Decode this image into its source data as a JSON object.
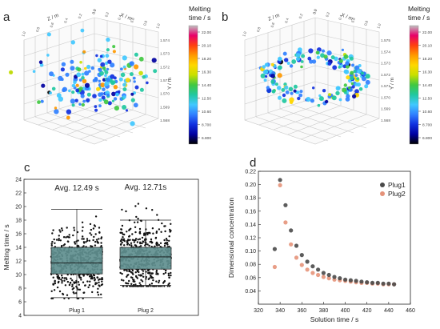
{
  "panels": {
    "a": {
      "letter": "a",
      "axes": {
        "x_label": "X / m",
        "y_label": "Y / m",
        "z_label": "Z / m",
        "x_ticks": [
          "0.0",
          "0.2",
          "0.4",
          "0.6",
          "0.8",
          "1.0"
        ],
        "y_ticks": [
          "1.568",
          "1.569",
          "1.570",
          "1.571",
          "1.572",
          "1.573",
          "1.574"
        ],
        "z_ticks": [
          "0.0",
          "0.2",
          "0.4",
          "0.6",
          "0.8",
          "1.0"
        ]
      },
      "colorbar": {
        "title_lines": [
          "Melting",
          "time / s"
        ],
        "ticks": [
          "22.00",
          "20.10",
          "18.20",
          "16.30",
          "14.40",
          "12.50",
          "10.60",
          "8.700",
          "6.800"
        ],
        "colors": [
          "#c0c0c0",
          "#e8006a",
          "#ff4010",
          "#ff9900",
          "#ffd700",
          "#c8e000",
          "#40c840",
          "#20c8a0",
          "#40c8ff",
          "#3080ff",
          "#1030e0",
          "#0000a0",
          "#000000"
        ]
      }
    },
    "b": {
      "letter": "b",
      "axes": {
        "x_label": "X / m",
        "y_label": "Y / m",
        "z_label": "Z / m",
        "x_ticks": [
          "0.0",
          "0.2",
          "0.4",
          "0.6",
          "0.8",
          "1.0"
        ],
        "y_ticks": [
          "1.568",
          "1.569",
          "1.570",
          "1.571",
          "1.572",
          "1.573",
          "1.574",
          "1.575"
        ],
        "z_ticks": [
          "0.0",
          "0.2",
          "0.4",
          "0.6",
          "0.8",
          "1.0"
        ]
      },
      "colorbar": {
        "title_lines": [
          "Melting",
          "time / s"
        ],
        "ticks": [
          "22.00",
          "20.10",
          "18.20",
          "16.30",
          "14.40",
          "12.50",
          "10.60",
          "8.700",
          "6.800"
        ],
        "colors": [
          "#c0c0c0",
          "#e8006a",
          "#ff4010",
          "#ff9900",
          "#ffd700",
          "#c8e000",
          "#40c840",
          "#20c8a0",
          "#40c8ff",
          "#3080ff",
          "#1030e0",
          "#0000a0",
          "#000000"
        ]
      }
    },
    "c": {
      "letter": "c",
      "annotations": [
        "Avg. 12.49 s",
        "Avg. 12.71s"
      ]
    },
    "d": {
      "letter": "d"
    }
  },
  "chart_data": [
    {
      "type": "scatter",
      "panel": "a",
      "title": "",
      "xlabel": "X / m",
      "ylabel": "Y / m",
      "zlabel": "Z / m",
      "ylim": [
        1.568,
        1.574
      ],
      "color_by": "Melting time / s",
      "color_range": [
        6.8,
        22.0
      ]
    },
    {
      "type": "scatter",
      "panel": "b",
      "title": "",
      "xlabel": "X / m",
      "ylabel": "Y / m",
      "zlabel": "Z / m",
      "ylim": [
        1.568,
        1.575
      ],
      "color_by": "Melting time / s",
      "color_range": [
        6.8,
        22.0
      ]
    },
    {
      "type": "box",
      "panel": "c",
      "categories": [
        "Plug 1",
        "Plug 2"
      ],
      "ylabel": "Melting time / s",
      "ylim": [
        4,
        24
      ],
      "yticks": [
        4,
        6,
        8,
        10,
        12,
        14,
        16,
        18,
        20,
        22,
        24
      ],
      "grid": false,
      "box_color": "#5f8f8f",
      "boxes": [
        {
          "name": "Plug 1",
          "whisker_low": 6.6,
          "q1": 10.1,
          "median": 11.7,
          "q3": 14.0,
          "whisker_high": 19.6,
          "min": 6.5,
          "max": 22.2,
          "mean": 12.49
        },
        {
          "name": "Plug 2",
          "whisker_low": 8.4,
          "q1": 10.8,
          "median": 12.6,
          "q3": 14.0,
          "whisker_high": 18.0,
          "min": 8.3,
          "max": 21.0,
          "mean": 12.71
        }
      ]
    },
    {
      "type": "scatter",
      "panel": "d",
      "xlabel": "Solution time / s",
      "ylabel": "Dimensional concentration",
      "xlim": [
        320,
        460
      ],
      "ylim": [
        0.02,
        0.22
      ],
      "xticks": [
        320,
        340,
        360,
        380,
        400,
        420,
        440,
        460
      ],
      "yticks": [
        0.04,
        0.06,
        0.08,
        0.1,
        0.12,
        0.14,
        0.16,
        0.18,
        0.2,
        0.22
      ],
      "legend_position": "top-right",
      "series": [
        {
          "name": "Plug1",
          "color": "#4a4a4a",
          "x": [
            335,
            340,
            345,
            350,
            355,
            360,
            365,
            370,
            375,
            380,
            385,
            390,
            395,
            400,
            405,
            410,
            415,
            420,
            425,
            430,
            435,
            440,
            445
          ],
          "y": [
            0.103,
            0.207,
            0.169,
            0.131,
            0.108,
            0.094,
            0.084,
            0.077,
            0.072,
            0.067,
            0.064,
            0.061,
            0.059,
            0.057,
            0.056,
            0.055,
            0.054,
            0.053,
            0.052,
            0.052,
            0.051,
            0.051,
            0.05
          ]
        },
        {
          "name": "Plug2",
          "color": "#e5937a",
          "x": [
            335,
            340,
            345,
            350,
            355,
            360,
            365,
            370,
            375,
            380,
            385,
            390,
            395,
            400,
            405,
            410,
            415,
            420,
            425,
            430,
            435,
            440,
            445
          ],
          "y": [
            0.076,
            0.199,
            0.143,
            0.11,
            0.09,
            0.079,
            0.072,
            0.067,
            0.064,
            0.061,
            0.059,
            0.057,
            0.056,
            0.055,
            0.054,
            0.053,
            0.052,
            0.052,
            0.051,
            0.051,
            0.05,
            0.05,
            0.05
          ]
        }
      ]
    }
  ]
}
